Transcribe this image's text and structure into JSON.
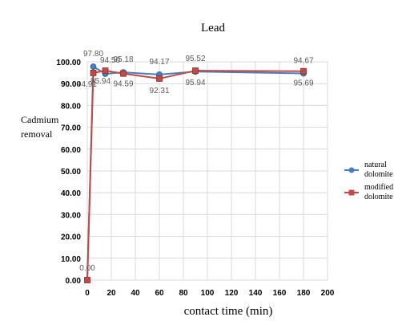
{
  "chart_data": {
    "type": "line",
    "title": "Lead",
    "xlabel": "contact time (min)",
    "ylabel_lines": [
      "Cadmium",
      "removal"
    ],
    "x": [
      0,
      5,
      15,
      30,
      60,
      90,
      180
    ],
    "xlim": [
      0,
      200
    ],
    "xticks": [
      0,
      20,
      40,
      60,
      80,
      100,
      120,
      140,
      160,
      180,
      200
    ],
    "ylim": [
      0,
      100
    ],
    "yticks": [
      0,
      10,
      20,
      30,
      40,
      50,
      60,
      70,
      80,
      90,
      100
    ],
    "ytick_labels": [
      "0.00",
      "10.00",
      "20.00",
      "30.00",
      "40.00",
      "50.00",
      "60.00",
      "70.00",
      "80.00",
      "90.00",
      "100.00"
    ],
    "grid": true,
    "legend_position": "right",
    "series": [
      {
        "name_lines": [
          "natural",
          "dolomite"
        ],
        "color": "#4a7ebb",
        "marker": "circle",
        "values": [
          0.0,
          97.8,
          94.5,
          95.18,
          94.17,
          95.52,
          94.67
        ],
        "labels": [
          "0.00",
          "97.80",
          "94.50",
          "95.18",
          "94.17",
          "95.52",
          "94.67"
        ]
      },
      {
        "name_lines": [
          "modified",
          "dolomite"
        ],
        "color": "#be4b48",
        "marker": "square",
        "values": [
          0.0,
          94.91,
          95.94,
          94.59,
          92.31,
          95.94,
          95.69
        ],
        "labels": [
          "",
          "94.91",
          "95.94",
          "94.59",
          "92.31",
          "95.94",
          "95.69"
        ]
      }
    ]
  }
}
